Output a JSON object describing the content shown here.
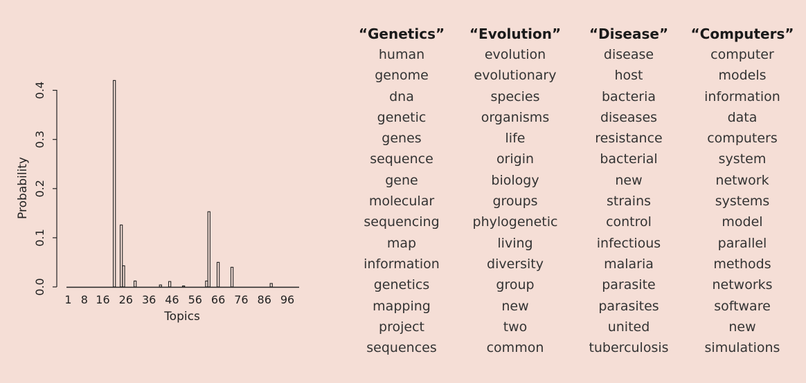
{
  "chart_data": {
    "type": "bar",
    "xlabel": "Topics",
    "ylabel": "Probability",
    "xlim": [
      1,
      100
    ],
    "ylim": [
      0,
      0.42
    ],
    "x_ticks": [
      1,
      8,
      16,
      26,
      36,
      46,
      56,
      66,
      76,
      86,
      96
    ],
    "y_ticks": [
      0.0,
      0.1,
      0.2,
      0.3,
      0.4
    ],
    "y_tick_labels": [
      "0.0",
      "0.1",
      "0.2",
      "0.3",
      "0.4"
    ],
    "grid": false,
    "bars": [
      {
        "x": 21,
        "value": 0.42
      },
      {
        "x": 24,
        "value": 0.126
      },
      {
        "x": 25,
        "value": 0.043
      },
      {
        "x": 30,
        "value": 0.012
      },
      {
        "x": 41,
        "value": 0.004
      },
      {
        "x": 45,
        "value": 0.011
      },
      {
        "x": 51,
        "value": 0.002
      },
      {
        "x": 61,
        "value": 0.012
      },
      {
        "x": 62,
        "value": 0.153
      },
      {
        "x": 66,
        "value": 0.05
      },
      {
        "x": 72,
        "value": 0.04
      },
      {
        "x": 89,
        "value": 0.007
      }
    ]
  },
  "topics": [
    {
      "title": "“Genetics”",
      "words": [
        "human",
        "genome",
        "dna",
        "genetic",
        "genes",
        "sequence",
        "gene",
        "molecular",
        "sequencing",
        "map",
        "information",
        "genetics",
        "mapping",
        "project",
        "sequences"
      ]
    },
    {
      "title": "“Evolution”",
      "words": [
        "evolution",
        "evolutionary",
        "species",
        "organisms",
        "life",
        "origin",
        "biology",
        "groups",
        "phylogenetic",
        "living",
        "diversity",
        "group",
        "new",
        "two",
        "common"
      ]
    },
    {
      "title": "“Disease”",
      "words": [
        "disease",
        "host",
        "bacteria",
        "diseases",
        "resistance",
        "bacterial",
        "new",
        "strains",
        "control",
        "infectious",
        "malaria",
        "parasite",
        "parasites",
        "united",
        "tuberculosis"
      ]
    },
    {
      "title": "“Computers”",
      "words": [
        "computer",
        "models",
        "information",
        "data",
        "computers",
        "system",
        "network",
        "systems",
        "model",
        "parallel",
        "methods",
        "networks",
        "software",
        "new",
        "simulations"
      ]
    }
  ]
}
